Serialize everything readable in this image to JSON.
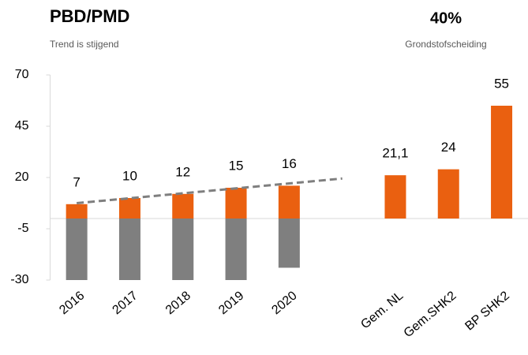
{
  "chart_data": {
    "type": "bar",
    "title": "PBD/PMD",
    "subtitle": "Trend is stijgend",
    "kpi": {
      "value": "40%",
      "label": "Grondstofscheiding"
    },
    "categories": [
      "2016",
      "2017",
      "2018",
      "2019",
      "2020",
      null,
      "Gem. NL",
      "Gem.SHK2",
      "BP SHK2"
    ],
    "series": [
      {
        "color": "#ea6010",
        "values": [
          7,
          10,
          12,
          15,
          16,
          null,
          21.1,
          24,
          55
        ],
        "value_labels": [
          "7",
          "10",
          "12",
          "15",
          "16",
          null,
          "21,1",
          "24",
          "55"
        ]
      },
      {
        "color": "#7f7f7f",
        "values": [
          -30,
          -30,
          -30,
          -30,
          -24,
          null,
          null,
          null,
          null
        ]
      }
    ],
    "trend": {
      "color": "#7f7f7f",
      "dashed": true,
      "values": [
        7.5,
        9.9,
        12.3,
        14.7,
        17.1,
        19.5,
        null,
        null,
        null
      ]
    },
    "ylim": [
      -30,
      70
    ],
    "yticks": [
      70,
      45,
      20,
      -5,
      -30
    ]
  }
}
